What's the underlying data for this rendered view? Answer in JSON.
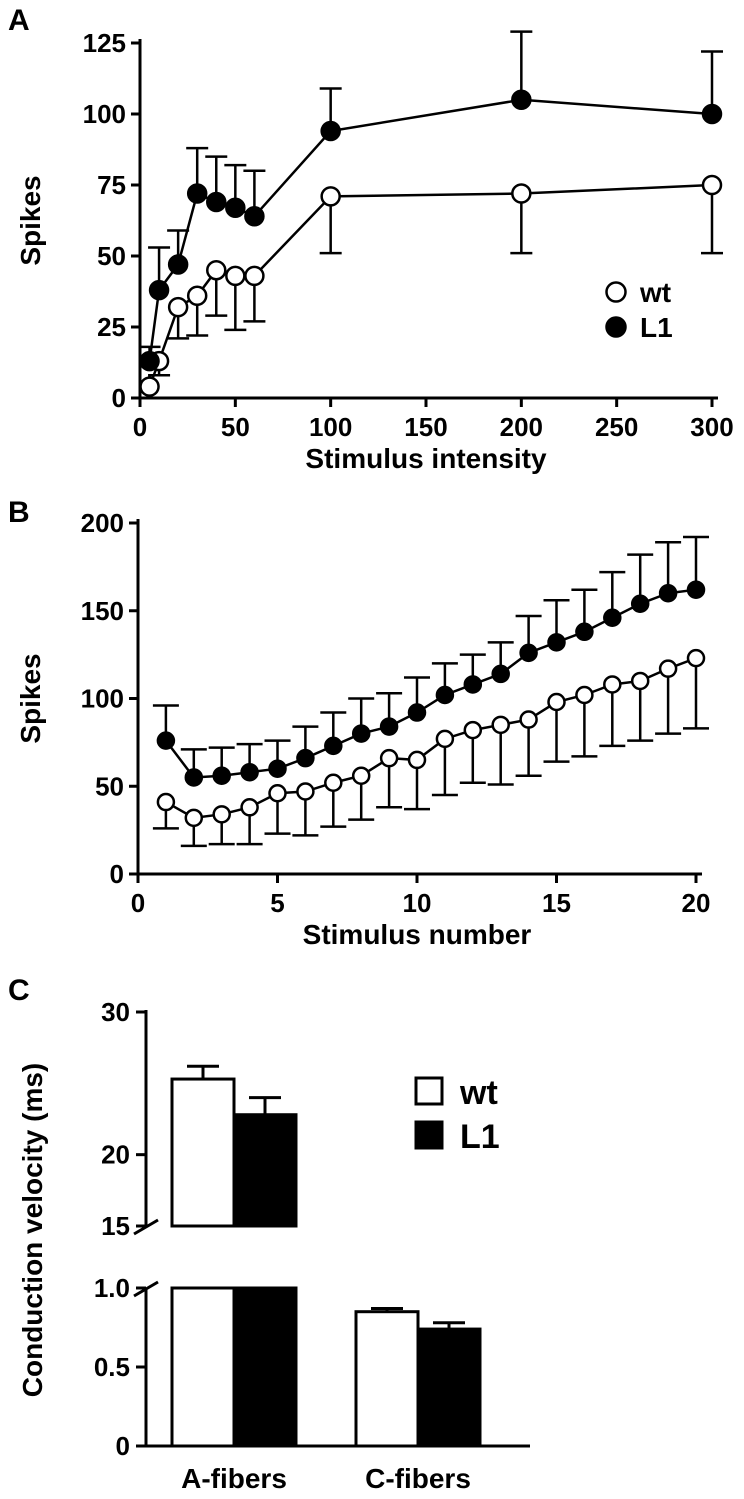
{
  "chart_data": [
    {
      "panel": "A",
      "type": "line",
      "xlabel": "Stimulus intensity",
      "ylabel": "Spikes",
      "xlim": [
        0,
        300
      ],
      "ylim": [
        0,
        125
      ],
      "xticks": [
        0,
        50,
        100,
        150,
        200,
        250,
        300
      ],
      "yticks": [
        0,
        25,
        50,
        75,
        100,
        125
      ],
      "legend_position": "right",
      "series": [
        {
          "name": "wt",
          "marker": "open-circle",
          "color": "#000000",
          "x": [
            5,
            10,
            20,
            30,
            40,
            50,
            60,
            100,
            200,
            300
          ],
          "y": [
            4,
            13,
            32,
            36,
            45,
            43,
            43,
            71,
            72,
            75
          ],
          "err": [
            4,
            5,
            11,
            14,
            16,
            19,
            16,
            20,
            21,
            24
          ]
        },
        {
          "name": "L1",
          "marker": "filled-circle",
          "color": "#000000",
          "x": [
            5,
            10,
            20,
            30,
            40,
            50,
            60,
            100,
            200,
            300
          ],
          "y": [
            13,
            38,
            47,
            72,
            69,
            67,
            64,
            94,
            105,
            100
          ],
          "err": [
            5,
            15,
            12,
            16,
            16,
            15,
            16,
            15,
            24,
            22
          ]
        }
      ]
    },
    {
      "panel": "B",
      "type": "line",
      "xlabel": "Stimulus number",
      "ylabel": "Spikes",
      "xlim": [
        0,
        20
      ],
      "ylim": [
        0,
        200
      ],
      "xticks": [
        0,
        5,
        10,
        15,
        20
      ],
      "yticks": [
        0,
        50,
        100,
        150,
        200
      ],
      "series": [
        {
          "name": "wt",
          "marker": "open-circle",
          "x": [
            1,
            2,
            3,
            4,
            5,
            6,
            7,
            8,
            9,
            10,
            11,
            12,
            13,
            14,
            15,
            16,
            17,
            18,
            19,
            20
          ],
          "y": [
            41,
            32,
            34,
            38,
            46,
            47,
            52,
            56,
            66,
            65,
            77,
            82,
            85,
            88,
            98,
            102,
            108,
            110,
            117,
            123
          ],
          "err": [
            15,
            16,
            17,
            21,
            23,
            25,
            25,
            25,
            28,
            28,
            32,
            30,
            34,
            32,
            34,
            35,
            35,
            34,
            37,
            40
          ]
        },
        {
          "name": "L1",
          "marker": "filled-circle",
          "x": [
            1,
            2,
            3,
            4,
            5,
            6,
            7,
            8,
            9,
            10,
            11,
            12,
            13,
            14,
            15,
            16,
            17,
            18,
            19,
            20
          ],
          "y": [
            76,
            55,
            56,
            58,
            60,
            66,
            73,
            80,
            84,
            92,
            102,
            108,
            114,
            126,
            132,
            138,
            146,
            154,
            160,
            162
          ],
          "err": [
            20,
            16,
            16,
            16,
            16,
            18,
            19,
            20,
            19,
            20,
            18,
            17,
            18,
            21,
            24,
            24,
            26,
            28,
            29,
            30
          ]
        }
      ]
    },
    {
      "panel": "C",
      "type": "bar",
      "ylabel": "Conduction velocity (ms)",
      "categories": [
        "A-fibers",
        "C-fibers"
      ],
      "axis_break": [
        1.0,
        15
      ],
      "yticks_upper": [
        15,
        20,
        30
      ],
      "yticks_lower": [
        0,
        0.5,
        1.0
      ],
      "ytick_labels": {
        "upper": [
          "15",
          "20",
          "30"
        ],
        "lower": [
          "0",
          "0.5",
          "1.0"
        ]
      },
      "series": [
        {
          "name": "wt",
          "fill": "#ffffff",
          "values": [
            25.3,
            0.85
          ],
          "err": [
            0.9,
            0.02
          ]
        },
        {
          "name": "L1",
          "fill": "#000000",
          "values": [
            22.8,
            0.74
          ],
          "err": [
            1.2,
            0.04
          ]
        }
      ]
    }
  ],
  "panels": {
    "A": "A",
    "B": "B",
    "C": "C"
  }
}
